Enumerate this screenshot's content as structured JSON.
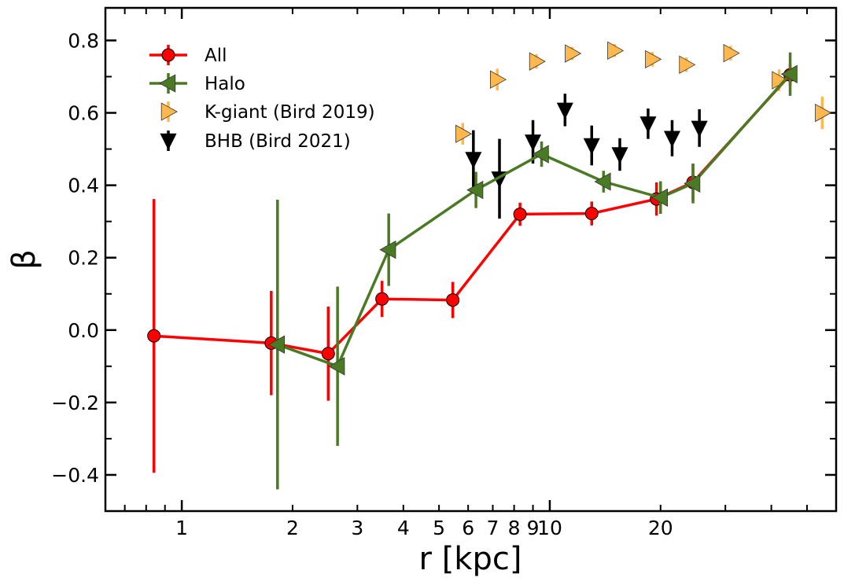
{
  "chart_data": {
    "type": "scatter",
    "title": "",
    "xlabel": "r [kpc]",
    "ylabel": "β",
    "xscale": "log",
    "xlim": [
      0.62,
      60
    ],
    "ylim": [
      -0.5,
      0.89
    ],
    "x_tick_labels": [
      {
        "value": 1,
        "label": "1"
      },
      {
        "value": 2,
        "label": "2"
      },
      {
        "value": 3,
        "label": "3"
      },
      {
        "value": 4,
        "label": "4"
      },
      {
        "value": 5,
        "label": "5"
      },
      {
        "value": 6,
        "label": "6"
      },
      {
        "value": 7,
        "label": "7"
      },
      {
        "value": 8,
        "label": "8"
      },
      {
        "value": 9,
        "label": "9"
      },
      {
        "value": 10,
        "label": "10"
      },
      {
        "value": 20,
        "label": "20"
      }
    ],
    "y_tick_labels": [
      {
        "value": 0.8,
        "label": "0.8"
      },
      {
        "value": 0.6,
        "label": "0.6"
      },
      {
        "value": 0.4,
        "label": "0.4"
      },
      {
        "value": 0.2,
        "label": "0.2"
      },
      {
        "value": 0.0,
        "label": "0.0"
      },
      {
        "value": -0.2,
        "label": "−0.2"
      },
      {
        "value": -0.4,
        "label": "−0.4"
      }
    ],
    "legend_position": "top-left",
    "series": [
      {
        "name": "All",
        "color": "#ff0000",
        "marker": "circle",
        "line": true,
        "points": [
          {
            "x": 0.84,
            "y": -0.016,
            "err": 0.378
          },
          {
            "x": 1.75,
            "y": -0.036,
            "err": 0.144
          },
          {
            "x": 2.5,
            "y": -0.065,
            "err": 0.13
          },
          {
            "x": 3.5,
            "y": 0.086,
            "err": 0.05
          },
          {
            "x": 5.45,
            "y": 0.083,
            "err": 0.05
          },
          {
            "x": 8.3,
            "y": 0.32,
            "err": 0.032
          },
          {
            "x": 13.0,
            "y": 0.322,
            "err": 0.033
          },
          {
            "x": 19.5,
            "y": 0.362,
            "err": 0.046
          },
          {
            "x": 24.5,
            "y": 0.408,
            "err": 0.05
          },
          {
            "x": 45.0,
            "y": 0.705,
            "err": 0.03
          }
        ]
      },
      {
        "name": "Halo",
        "color": "#4a7a24",
        "marker": "triangle-left",
        "line": true,
        "points": [
          {
            "x": 1.82,
            "y": -0.04,
            "err": 0.4
          },
          {
            "x": 2.65,
            "y": -0.1,
            "err": 0.22
          },
          {
            "x": 3.65,
            "y": 0.222,
            "err": 0.1
          },
          {
            "x": 6.3,
            "y": 0.387,
            "err": 0.05
          },
          {
            "x": 9.5,
            "y": 0.486,
            "err": 0.035
          },
          {
            "x": 14.0,
            "y": 0.41,
            "err": 0.03
          },
          {
            "x": 20.0,
            "y": 0.366,
            "err": 0.045
          },
          {
            "x": 24.5,
            "y": 0.405,
            "err": 0.055
          },
          {
            "x": 45.0,
            "y": 0.707,
            "err": 0.06
          }
        ]
      },
      {
        "name": "K-giant (Bird 2019)",
        "color": "#ffb84d",
        "marker": "triangle-right",
        "line": false,
        "points": [
          {
            "x": 5.8,
            "y": 0.542,
            "err": 0.03
          },
          {
            "x": 7.2,
            "y": 0.692,
            "err": 0.03
          },
          {
            "x": 9.2,
            "y": 0.742,
            "err": 0.02
          },
          {
            "x": 11.5,
            "y": 0.764,
            "err": 0.018
          },
          {
            "x": 15.0,
            "y": 0.772,
            "err": 0.018
          },
          {
            "x": 19.0,
            "y": 0.748,
            "err": 0.02
          },
          {
            "x": 23.5,
            "y": 0.733,
            "err": 0.02
          },
          {
            "x": 31.0,
            "y": 0.765,
            "err": 0.02
          },
          {
            "x": 42.0,
            "y": 0.69,
            "err": 0.03
          },
          {
            "x": 55.0,
            "y": 0.6,
            "err": 0.045
          }
        ]
      },
      {
        "name": "BHB (Bird 2021)",
        "color": "#000000",
        "marker": "triangle-down",
        "line": false,
        "points": [
          {
            "x": 6.2,
            "y": 0.472,
            "err": 0.08
          },
          {
            "x": 7.3,
            "y": 0.418,
            "err": 0.11
          },
          {
            "x": 9.0,
            "y": 0.52,
            "err": 0.06
          },
          {
            "x": 11.0,
            "y": 0.608,
            "err": 0.045
          },
          {
            "x": 13.0,
            "y": 0.51,
            "err": 0.055
          },
          {
            "x": 15.5,
            "y": 0.485,
            "err": 0.045
          },
          {
            "x": 18.5,
            "y": 0.57,
            "err": 0.042
          },
          {
            "x": 21.5,
            "y": 0.53,
            "err": 0.05
          },
          {
            "x": 25.5,
            "y": 0.558,
            "err": 0.052
          }
        ]
      }
    ]
  }
}
